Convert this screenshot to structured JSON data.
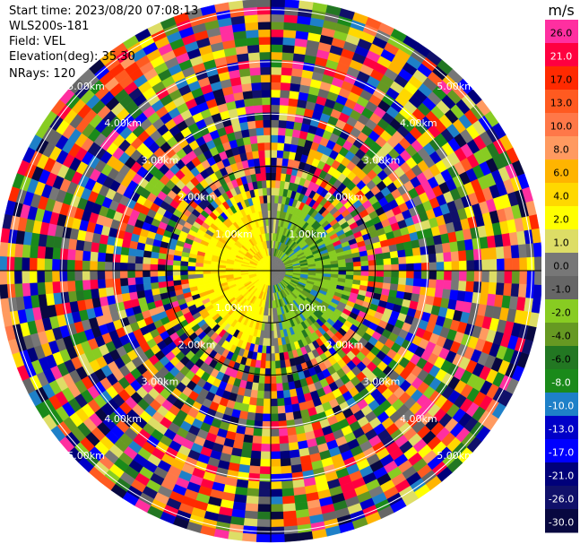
{
  "header": {
    "start_time": "Start time: 2023/08/20 07:08:13",
    "instrument": "WLS200s-181",
    "field": "Field: VEL",
    "elevation": "Elevation(deg): 35.30",
    "nrays": "NRays: 120"
  },
  "chart_data": {
    "type": "polar-ppi",
    "field": "VEL",
    "units": "m/s",
    "elevation_deg": 35.3,
    "n_rays": 120,
    "range_rings_km": [
      1.0,
      2.0,
      3.0,
      4.0,
      5.0
    ],
    "ring_labels": [
      "1.00km",
      "2.00km",
      "3.00km",
      "4.00km",
      "5.00km"
    ],
    "max_range_km": 5.2,
    "colorbar": {
      "label": "m/s",
      "ticks": [
        "26.0",
        "21.0",
        "17.0",
        "13.0",
        "10.0",
        "8.0",
        "6.0",
        "4.0",
        "2.0",
        "1.0",
        "0.0",
        "-1.0",
        "-2.0",
        "-4.0",
        "-6.0",
        "-8.0",
        "-10.0",
        "-13.0",
        "-17.0",
        "-21.0",
        "-26.0",
        "-30.0"
      ],
      "colors": [
        "#ff2fa0",
        "#ff0040",
        "#ff2a00",
        "#ff5a20",
        "#ff7848",
        "#ff9a60",
        "#ffb400",
        "#ffd800",
        "#ffff00",
        "#dddd66",
        "#777777",
        "#666666",
        "#88cc22",
        "#669922",
        "#227722",
        "#1a8a1a",
        "#1e80c8",
        "#0000c8",
        "#0000ff",
        "#00007a",
        "#10106a",
        "#080840"
      ]
    },
    "velocity_pattern": {
      "near_field_radius_km": 1.6,
      "near_positive_sector": "west",
      "near_negative_sector": "east",
      "far_field": "noisy"
    }
  }
}
